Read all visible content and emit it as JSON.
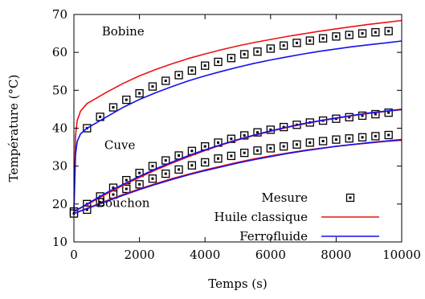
{
  "chart_data": {
    "type": "line",
    "xlabel": "Temps (s)",
    "ylabel": "Température (°C)",
    "xlim": [
      0,
      10000
    ],
    "ylim": [
      10,
      70
    ],
    "xticks": [
      0,
      2000,
      4000,
      6000,
      8000,
      10000
    ],
    "yticks": [
      10,
      20,
      30,
      40,
      50,
      60,
      70
    ],
    "grid": false,
    "legend_position": "bottom-right",
    "annotations": [
      {
        "text": "Bobine",
        "x": 1500,
        "y": 64.5
      },
      {
        "text": "Cuve",
        "x": 1400,
        "y": 34.5
      },
      {
        "text": "Bouchon",
        "x": 1500,
        "y": 19.2
      }
    ],
    "legend": [
      {
        "label": "Mesure",
        "kind": "marker"
      },
      {
        "label": "Huile classique",
        "kind": "line",
        "color": "#ee1111"
      },
      {
        "label": "Ferrofluide",
        "kind": "line",
        "color": "#1111ee"
      }
    ],
    "series": [
      {
        "name": "Mesure",
        "style": "marker",
        "groups": [
          {
            "x": [
              0,
              400,
              800,
              1200,
              1600,
              2000,
              2400,
              2800,
              3200,
              3600,
              4000,
              4400,
              4800,
              5200,
              5600,
              6000,
              6400,
              6800,
              7200,
              7600,
              8000,
              8400,
              8800,
              9200,
              9600
            ],
            "y": [
              18,
              40,
              43,
              45.5,
              47.5,
              49.2,
              51,
              52.5,
              54,
              55.2,
              56.5,
              57.5,
              58.5,
              59.5,
              60.2,
              61,
              61.8,
              62.5,
              63.1,
              63.7,
              64.2,
              64.6,
              65,
              65.3,
              65.6
            ]
          },
          {
            "x": [
              0,
              400,
              800,
              1200,
              1600,
              2000,
              2400,
              2800,
              3200,
              3600,
              4000,
              4400,
              4800,
              5200,
              5600,
              6000,
              6400,
              6800,
              7200,
              7600,
              8000,
              8400,
              8800,
              9200,
              9600
            ],
            "y": [
              18,
              20,
              22,
              24.3,
              26.3,
              28.2,
              30,
              31.5,
              32.8,
              34,
              35.2,
              36.2,
              37.2,
              38.1,
              38.9,
              39.6,
              40.3,
              40.9,
              41.5,
              42,
              42.5,
              42.9,
              43.3,
              43.7,
              44.1
            ]
          },
          {
            "x": [
              0,
              400,
              800,
              1200,
              1600,
              2000,
              2400,
              2800,
              3200,
              3600,
              4000,
              4400,
              4800,
              5200,
              5600,
              6000,
              6400,
              6800,
              7200,
              7600,
              8000,
              8400,
              8800,
              9200,
              9600
            ],
            "y": [
              17.5,
              18.5,
              20.5,
              22.5,
              24,
              25.2,
              26.7,
              28,
              29.1,
              30.2,
              31,
              32,
              32.7,
              33.5,
              34.1,
              34.7,
              35.2,
              35.7,
              36.2,
              36.6,
              37,
              37.3,
              37.6,
              37.9,
              38.2
            ]
          }
        ]
      },
      {
        "name": "Huile classique",
        "style": "line",
        "color": "#ee1111",
        "groups": [
          {
            "x": [
              0,
              50,
              100,
              200,
              400,
              700,
              1000,
              1500,
              2000,
              2500,
              3000,
              3500,
              4000,
              4500,
              5000,
              5500,
              6000,
              6500,
              7000,
              7500,
              8000,
              8500,
              9000,
              9500,
              10000
            ],
            "y": [
              18,
              38,
              42,
              44.5,
              46.5,
              48,
              49.5,
              51.8,
              53.8,
              55.5,
              57,
              58.4,
              59.6,
              60.7,
              61.7,
              62.6,
              63.4,
              64.2,
              64.9,
              65.6,
              66.2,
              66.8,
              67.4,
              67.9,
              68.4
            ]
          },
          {
            "x": [
              0,
              500,
              1000,
              1500,
              2000,
              2500,
              3000,
              3500,
              4000,
              4500,
              5000,
              5500,
              6000,
              6500,
              7000,
              7500,
              8000,
              8500,
              9000,
              9500,
              10000
            ],
            "y": [
              18,
              20.3,
              22.7,
              24.9,
              27,
              29,
              30.8,
              32.5,
              34.1,
              35.6,
              36.9,
              38.1,
              39.2,
              40.2,
              41.1,
              41.9,
              42.6,
              43.3,
              43.9,
              44.4,
              44.9
            ]
          },
          {
            "x": [
              0,
              500,
              1000,
              1500,
              2000,
              2500,
              3000,
              3500,
              4000,
              4500,
              5000,
              5500,
              6000,
              6500,
              7000,
              7500,
              8000,
              8500,
              9000,
              9500,
              10000
            ],
            "y": [
              17.5,
              19.2,
              20.9,
              22.5,
              24,
              25.4,
              26.7,
              27.9,
              29,
              30,
              31,
              31.9,
              32.7,
              33.4,
              34.1,
              34.7,
              35.2,
              35.7,
              36.1,
              36.5,
              36.8
            ]
          }
        ]
      },
      {
        "name": "Ferrofluide",
        "style": "line",
        "color": "#1111ee",
        "groups": [
          {
            "x": [
              0,
              50,
              100,
              200,
              400,
              700,
              1000,
              1500,
              2000,
              2500,
              3000,
              3500,
              4000,
              4500,
              5000,
              5500,
              6000,
              6500,
              7000,
              7500,
              8000,
              8500,
              9000,
              9500,
              10000
            ],
            "y": [
              18,
              33,
              36.5,
              38.5,
              40,
              41.5,
              43,
              45.5,
              47.6,
              49.4,
              51,
              52.5,
              53.8,
              55,
              56.1,
              57.1,
              58,
              58.8,
              59.6,
              60.3,
              60.9,
              61.5,
              62,
              62.5,
              63
            ]
          },
          {
            "x": [
              0,
              500,
              1000,
              1500,
              2000,
              2500,
              3000,
              3500,
              4000,
              4500,
              5000,
              5500,
              6000,
              6500,
              7000,
              7500,
              8000,
              8500,
              9000,
              9500,
              10000
            ],
            "y": [
              18,
              20.5,
              23,
              25.2,
              27.3,
              29.3,
              31.1,
              32.8,
              34.3,
              35.7,
              37,
              38.2,
              39.3,
              40.3,
              41.2,
              42,
              42.7,
              43.4,
              44,
              44.5,
              45
            ]
          },
          {
            "x": [
              0,
              500,
              1000,
              1500,
              2000,
              2500,
              3000,
              3500,
              4000,
              4500,
              5000,
              5500,
              6000,
              6500,
              7000,
              7500,
              8000,
              8500,
              9000,
              9500,
              10000
            ],
            "y": [
              17.5,
              19.1,
              20.7,
              22.3,
              23.8,
              25.2,
              26.5,
              27.7,
              28.8,
              29.8,
              30.8,
              31.7,
              32.5,
              33.3,
              34,
              34.6,
              35.2,
              35.7,
              36.2,
              36.6,
              37
            ]
          }
        ]
      }
    ]
  }
}
